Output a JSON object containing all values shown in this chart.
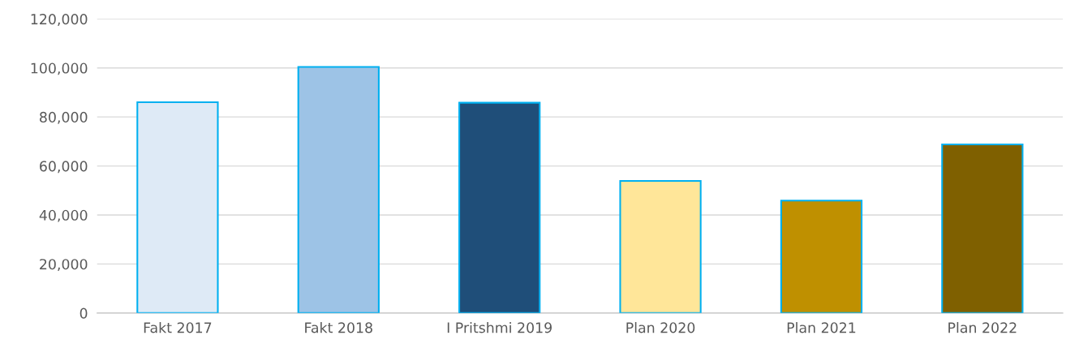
{
  "chart_data": {
    "type": "bar",
    "categories": [
      "Fakt 2017",
      "Fakt 2018",
      "I Pritshmi 2019",
      "Plan 2020",
      "Plan 2021",
      "Plan 2022"
    ],
    "values": [
      86000,
      100400,
      85800,
      53900,
      45900,
      68800
    ],
    "colors": [
      "#deeaf6",
      "#9dc3e6",
      "#1f4e79",
      "#ffe699",
      "#bf9000",
      "#7f6000"
    ],
    "ylim": [
      0,
      120000
    ],
    "yticks": [
      {
        "value": 0,
        "label": "0"
      },
      {
        "value": 20000,
        "label": "20,000"
      },
      {
        "value": 40000,
        "label": "40,000"
      },
      {
        "value": 60000,
        "label": "60,000"
      },
      {
        "value": 80000,
        "label": "80,000"
      },
      {
        "value": 100000,
        "label": "100,000"
      },
      {
        "value": 120000,
        "label": "120,000"
      }
    ],
    "grid": "y"
  }
}
